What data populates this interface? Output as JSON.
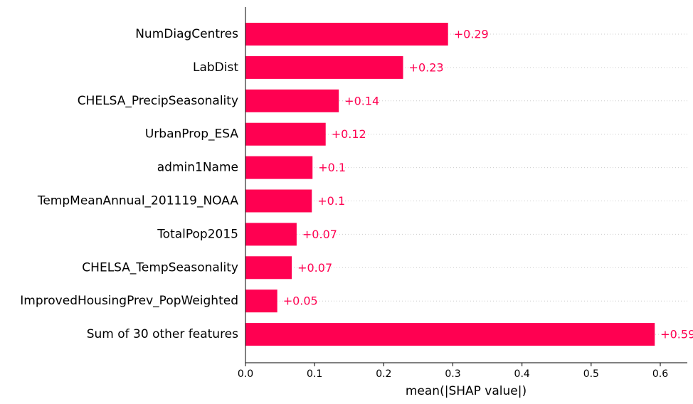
{
  "chart_data": {
    "type": "bar",
    "orientation": "horizontal",
    "title": "",
    "xlabel": "mean(|SHAP value|)",
    "ylabel": "",
    "xlim": [
      0,
      0.65
    ],
    "xticks": [
      "0.0",
      "0.1",
      "0.2",
      "0.3",
      "0.4",
      "0.5",
      "0.6"
    ],
    "xtick_values": [
      0,
      0.1,
      0.2,
      0.3,
      0.4,
      0.5,
      0.6
    ],
    "grid": "horizontal dotted row guides",
    "bar_color": "#ff0051",
    "categories": [
      "NumDiagCentres",
      "LabDist",
      "CHELSA_PrecipSeasonality",
      "UrbanProp_ESA",
      "admin1Name",
      "TempMeanAnnual_201119_NOAA",
      "TotalPop2015",
      "CHELSA_TempSeasonality",
      "ImprovedHousingPrev_PopWeighted",
      "Sum of 30 other features"
    ],
    "values": [
      0.293,
      0.228,
      0.135,
      0.116,
      0.097,
      0.096,
      0.074,
      0.067,
      0.046,
      0.592
    ],
    "value_labels": [
      "+0.29",
      "+0.23",
      "+0.14",
      "+0.12",
      "+0.1",
      "+0.1",
      "+0.07",
      "+0.07",
      "+0.05",
      "+0.59"
    ]
  }
}
